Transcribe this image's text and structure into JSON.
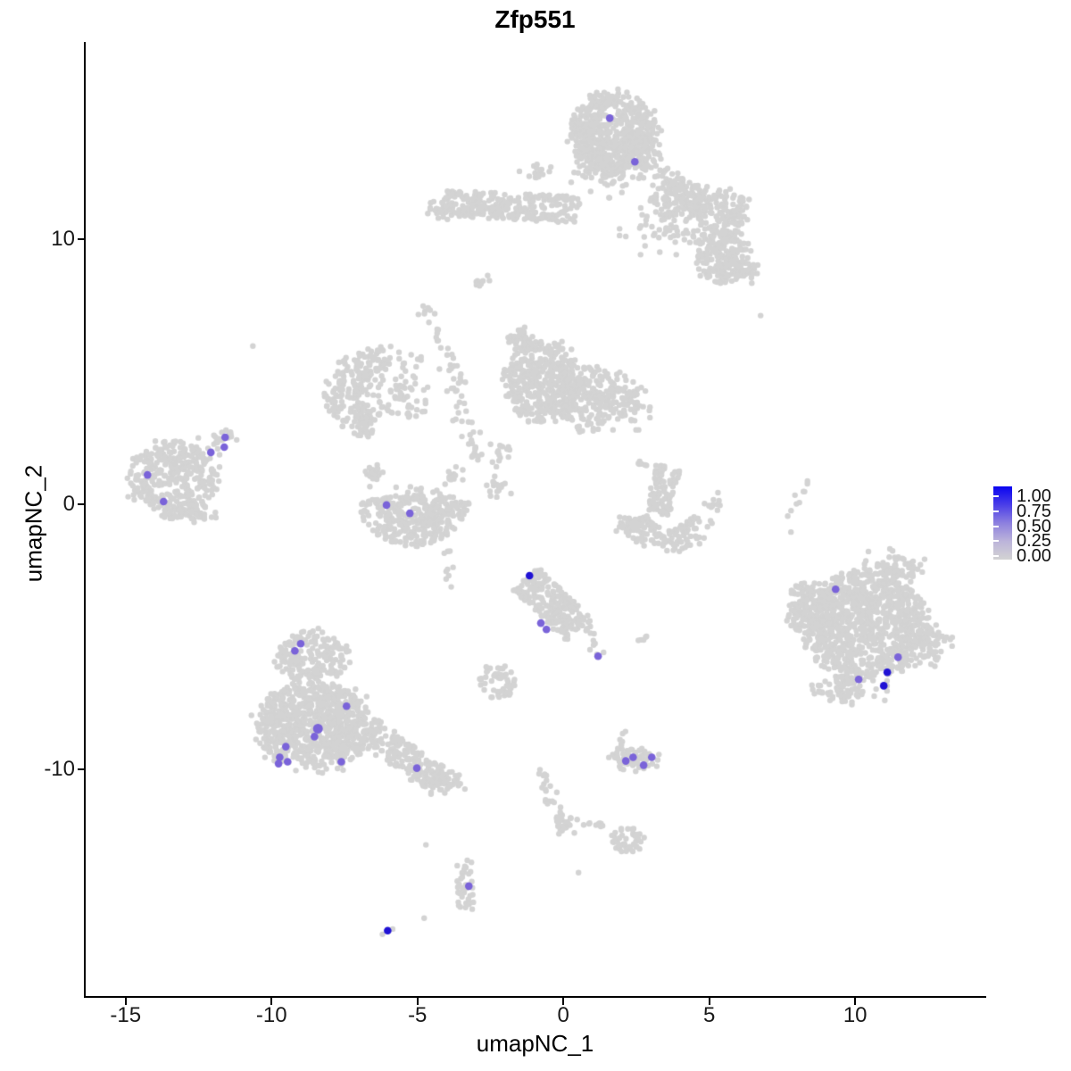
{
  "title": "Zfp551",
  "legend": {
    "labels": [
      "1.00",
      "0.75",
      "0.50",
      "0.25",
      "0.00"
    ],
    "gradient_top_to_bottom": [
      "#0A04F0",
      "#4A3EE8",
      "#8D80DF",
      "#BCB4DA",
      "#D3D3D3"
    ]
  },
  "chart_data": {
    "type": "scatter",
    "title": "Zfp551",
    "xlabel": "umapNC_1",
    "ylabel": "umapNC_2",
    "xlim": [
      -16.4,
      14.46
    ],
    "ylim": [
      -18.65,
      17.47
    ],
    "x_ticks": [
      -15,
      -10,
      -5,
      0,
      5,
      10
    ],
    "y_ticks": [
      10,
      0,
      -10
    ],
    "grid": false,
    "legend_position": "right",
    "colorbar": {
      "min": 0.0,
      "max": 1.0,
      "tick_labels": [
        "1.00",
        "0.75",
        "0.50",
        "0.25",
        "0.00"
      ]
    },
    "point_colors": {
      "zero": "#D3D3D3",
      "mid": "#7A63D9",
      "high": "#2012D4"
    },
    "background_cells": [
      {
        "name": "top-blob",
        "shape": "blob",
        "cx": 1.75,
        "cy": 14.0,
        "rx": 1.45,
        "ry": 1.55,
        "n": 650
      },
      {
        "name": "top-blob-fringe",
        "shape": "gauss",
        "cx": 1.6,
        "cy": 12.55,
        "rx": 1.1,
        "ry": 0.8,
        "n": 60
      },
      {
        "name": "top-trail",
        "shape": "chain",
        "pts": [
          [
            2.6,
            13.3
          ],
          [
            3.4,
            12.5
          ],
          [
            4.3,
            11.5
          ]
        ],
        "j": 0.3,
        "n": 50
      },
      {
        "name": "upper-band",
        "shape": "band",
        "cx": -1.8,
        "cy": 11.25,
        "rx": 2.35,
        "ry": 0.5,
        "rot": -3,
        "n": 270
      },
      {
        "name": "upper-band-tip",
        "shape": "gauss",
        "cx": -4.35,
        "cy": 11.1,
        "rx": 0.45,
        "ry": 0.4,
        "n": 18
      },
      {
        "name": "upper-band-above",
        "shape": "gauss",
        "cx": -0.9,
        "cy": 12.5,
        "rx": 0.5,
        "ry": 0.28,
        "n": 16
      },
      {
        "name": "upper-right-a1",
        "shape": "blob",
        "cx": 4.0,
        "cy": 11.55,
        "rx": 0.95,
        "ry": 0.8,
        "n": 130
      },
      {
        "name": "upper-right-a2",
        "shape": "blob",
        "cx": 5.35,
        "cy": 11.15,
        "rx": 1.0,
        "ry": 0.85,
        "n": 130
      },
      {
        "name": "upper-right-b1",
        "shape": "blob",
        "cx": 5.45,
        "cy": 9.4,
        "rx": 0.95,
        "ry": 1.05,
        "n": 190
      },
      {
        "name": "upper-right-b2",
        "shape": "gauss",
        "cx": 6.2,
        "cy": 8.9,
        "rx": 0.45,
        "ry": 0.45,
        "n": 40
      },
      {
        "name": "upper-right-connect",
        "shape": "gauss",
        "cx": 3.5,
        "cy": 10.4,
        "rx": 1.3,
        "ry": 0.8,
        "n": 55
      },
      {
        "name": "mid-dash",
        "shape": "band",
        "cx": -2.72,
        "cy": 8.45,
        "rx": 0.35,
        "ry": 0.12,
        "rot": 35,
        "n": 12
      },
      {
        "name": "crescent-arc",
        "shape": "arc",
        "cx": -6.05,
        "cy": 4.2,
        "R": 1.5,
        "a0": 85,
        "a1": 255,
        "th": 0.65,
        "ys": 0.85,
        "n": 220
      },
      {
        "name": "crescent-fill",
        "shape": "gauss",
        "cx": -5.8,
        "cy": 4.3,
        "rx": 1.0,
        "ry": 0.7,
        "n": 55
      },
      {
        "name": "crescent-upper-scatter",
        "shape": "gauss",
        "cx": -5.3,
        "cy": 5.4,
        "rx": 0.35,
        "ry": 0.3,
        "n": 10
      },
      {
        "name": "crescent-right-scatter",
        "shape": "gauss",
        "cx": -5.0,
        "cy": 3.6,
        "rx": 0.55,
        "ry": 0.4,
        "n": 14
      },
      {
        "name": "vertical-trail",
        "shape": "chain",
        "pts": [
          [
            -4.75,
            7.4
          ],
          [
            -4.4,
            6.5
          ],
          [
            -3.9,
            5.5
          ],
          [
            -3.55,
            4.6
          ],
          [
            -3.5,
            3.5
          ],
          [
            -3.2,
            2.5
          ],
          [
            -3.05,
            1.8
          ]
        ],
        "j": 0.2,
        "n": 60
      },
      {
        "name": "central-dense",
        "shape": "blob",
        "cx": -0.7,
        "cy": 4.6,
        "rx": 1.3,
        "ry": 1.5,
        "n": 400
      },
      {
        "name": "central-mid",
        "shape": "blob",
        "cx": 0.8,
        "cy": 4.0,
        "rx": 1.0,
        "ry": 1.2,
        "n": 170
      },
      {
        "name": "central-right",
        "shape": "gauss",
        "cx": 2.0,
        "cy": 3.9,
        "rx": 0.8,
        "ry": 0.9,
        "n": 90
      },
      {
        "name": "central-top-tip",
        "shape": "gauss",
        "cx": -1.4,
        "cy": 6.2,
        "rx": 0.45,
        "ry": 0.4,
        "n": 40
      },
      {
        "name": "chain-below-central",
        "shape": "chain",
        "pts": [
          [
            -2.0,
            2.6
          ],
          [
            -2.25,
            1.7
          ],
          [
            -2.3,
            0.8
          ],
          [
            -2.1,
            0.1
          ]
        ],
        "j": 0.17,
        "n": 32
      },
      {
        "name": "dots-left-of-chain",
        "shape": "gauss",
        "cx": -3.05,
        "cy": 1.8,
        "rx": 0.18,
        "ry": 0.28,
        "n": 7
      },
      {
        "name": "bowl-arc",
        "shape": "arc",
        "cx": -5.15,
        "cy": 0.35,
        "R": 1.35,
        "a0": 185,
        "a1": 358,
        "th": 0.6,
        "ys": 1.0,
        "n": 300
      },
      {
        "name": "bowl-left-tip",
        "shape": "gauss",
        "cx": -6.55,
        "cy": 1.15,
        "rx": 0.3,
        "ry": 0.4,
        "n": 25
      },
      {
        "name": "bowl-right-tip",
        "shape": "gauss",
        "cx": -3.75,
        "cy": 1.05,
        "rx": 0.25,
        "ry": 0.3,
        "n": 14
      },
      {
        "name": "bowl-fill",
        "shape": "gauss",
        "cx": -5.2,
        "cy": 0.1,
        "rx": 0.85,
        "ry": 0.5,
        "n": 60
      },
      {
        "name": "below-bowl-chain",
        "shape": "chain",
        "pts": [
          [
            -4.05,
            -1.5
          ],
          [
            -3.95,
            -2.5
          ],
          [
            -3.85,
            -3.4
          ]
        ],
        "j": 0.12,
        "n": 9
      },
      {
        "name": "left-cluster",
        "shape": "blob",
        "cx": -13.35,
        "cy": 1.0,
        "rx": 1.5,
        "ry": 1.4,
        "n": 360
      },
      {
        "name": "left-cluster-tail",
        "shape": "chain",
        "pts": [
          [
            -12.1,
            2.1
          ],
          [
            -11.45,
            2.7
          ]
        ],
        "j": 0.2,
        "n": 22
      },
      {
        "name": "left-cluster-fringe",
        "shape": "gauss",
        "cx": -12.7,
        "cy": -0.35,
        "rx": 0.8,
        "ry": 0.35,
        "n": 40
      },
      {
        "name": "hook-bar",
        "shape": "band",
        "cx": 3.4,
        "cy": 0.5,
        "rx": 0.42,
        "ry": 0.95,
        "rot": -12,
        "n": 100
      },
      {
        "name": "hook-bowl",
        "shape": "arc",
        "cx": 3.6,
        "cy": -0.25,
        "R": 1.25,
        "a0": 195,
        "a1": 345,
        "th": 0.5,
        "ys": 0.9,
        "n": 130
      },
      {
        "name": "hook-left-tip",
        "shape": "gauss",
        "cx": 2.3,
        "cy": -0.65,
        "rx": 0.4,
        "ry": 0.3,
        "n": 25
      },
      {
        "name": "hook-right-tip",
        "shape": "gauss",
        "cx": 5.1,
        "cy": 0.05,
        "rx": 0.22,
        "ry": 0.38,
        "n": 12
      },
      {
        "name": "hook-top-dots",
        "shape": "gauss",
        "cx": 2.7,
        "cy": 1.5,
        "rx": 0.18,
        "ry": 0.18,
        "n": 6
      },
      {
        "name": "dash-i",
        "shape": "chain",
        "pts": [
          [
            8.25,
            0.8
          ],
          [
            7.95,
            0.0
          ],
          [
            7.75,
            -0.6
          ]
        ],
        "j": 0.09,
        "n": 9
      },
      {
        "name": "right-big",
        "shape": "blob",
        "cx": 10.35,
        "cy": -4.55,
        "rx": 2.15,
        "ry": 1.95,
        "n": 950
      },
      {
        "name": "right-big-left-wing",
        "shape": "blob",
        "cx": 8.45,
        "cy": -3.9,
        "rx": 0.85,
        "ry": 1.0,
        "n": 140
      },
      {
        "name": "right-big-top",
        "shape": "gauss",
        "cx": 11.35,
        "cy": -2.35,
        "rx": 0.85,
        "ry": 0.55,
        "n": 70
      },
      {
        "name": "right-big-bottom",
        "shape": "gauss",
        "cx": 9.7,
        "cy": -6.95,
        "rx": 1.15,
        "ry": 0.55,
        "n": 80
      },
      {
        "name": "right-big-right",
        "shape": "gauss",
        "cx": 12.6,
        "cy": -5.2,
        "rx": 0.6,
        "ry": 0.8,
        "n": 60
      },
      {
        "name": "central-bottom",
        "shape": "band",
        "cx": -0.4,
        "cy": -3.75,
        "rx": 1.4,
        "ry": 0.62,
        "rot": -47,
        "n": 230
      },
      {
        "name": "central-bottom-chain",
        "shape": "chain",
        "pts": [
          [
            0.75,
            -4.4
          ],
          [
            1.05,
            -5.1
          ],
          [
            1.2,
            -5.65
          ]
        ],
        "j": 0.11,
        "n": 14
      },
      {
        "name": "pair-dots",
        "shape": "gauss",
        "cx": 2.75,
        "cy": -5.1,
        "rx": 0.28,
        "ry": 0.18,
        "n": 5
      },
      {
        "name": "small-blob-left",
        "shape": "blob",
        "cx": -2.25,
        "cy": -6.7,
        "rx": 0.65,
        "ry": 0.62,
        "n": 55
      },
      {
        "name": "bottomleft-main",
        "shape": "blob",
        "cx": -8.55,
        "cy": -8.35,
        "rx": 1.95,
        "ry": 1.65,
        "n": 800
      },
      {
        "name": "bottomleft-upper",
        "shape": "blob",
        "cx": -8.6,
        "cy": -5.75,
        "rx": 1.25,
        "ry": 0.95,
        "n": 190
      },
      {
        "name": "bottomleft-tail",
        "shape": "band",
        "cx": -5.45,
        "cy": -9.55,
        "rx": 1.6,
        "ry": 0.55,
        "rot": -38,
        "n": 170
      },
      {
        "name": "bottomleft-tail-end",
        "shape": "gauss",
        "cx": -4.1,
        "cy": -10.45,
        "rx": 0.6,
        "ry": 0.4,
        "n": 45
      },
      {
        "name": "bottom-mid-chain",
        "shape": "chain",
        "pts": [
          [
            -0.75,
            -9.95
          ],
          [
            -0.55,
            -10.9
          ],
          [
            -0.25,
            -11.7
          ],
          [
            0.0,
            -12.2
          ]
        ],
        "j": 0.13,
        "n": 32
      },
      {
        "name": "bottom-mid-widen",
        "shape": "gauss",
        "cx": 0.05,
        "cy": -12.15,
        "rx": 0.35,
        "ry": 0.3,
        "n": 18
      },
      {
        "name": "bottom-mid-dashes",
        "shape": "chain",
        "pts": [
          [
            0.55,
            -11.95
          ],
          [
            1.05,
            -12.1
          ],
          [
            1.55,
            -12.15
          ]
        ],
        "j": 0.08,
        "n": 9
      },
      {
        "name": "bottom-small-blob",
        "shape": "blob",
        "cx": 2.2,
        "cy": -12.7,
        "rx": 0.55,
        "ry": 0.5,
        "n": 42
      },
      {
        "name": "purple-small-cluster",
        "shape": "blob",
        "cx": 2.45,
        "cy": -9.62,
        "rx": 0.85,
        "ry": 0.45,
        "n": 60
      },
      {
        "name": "purple-small-nub",
        "shape": "gauss",
        "cx": 2.0,
        "cy": -8.95,
        "rx": 0.18,
        "ry": 0.3,
        "n": 7
      },
      {
        "name": "comma-blob",
        "shape": "chain",
        "pts": [
          [
            -3.3,
            -13.55
          ],
          [
            -3.55,
            -14.2
          ],
          [
            -3.3,
            -14.8
          ],
          [
            -3.5,
            -15.35
          ]
        ],
        "j": 0.16,
        "n": 38
      }
    ],
    "background_singles": [
      [
        -10.64,
        5.98
      ],
      [
        6.76,
        7.13
      ],
      [
        7.8,
        -1.05
      ],
      [
        -4.77,
        -15.64
      ],
      [
        -4.71,
        -12.87
      ],
      [
        0.52,
        -13.92
      ],
      [
        -6.2,
        -16.25
      ],
      [
        -5.85,
        -16.05
      ]
    ],
    "expressing_cells": [
      {
        "x": 1.59,
        "y": 14.59,
        "level": "mid"
      },
      {
        "x": 2.45,
        "y": 12.94,
        "level": "mid"
      },
      {
        "x": -11.59,
        "y": 2.53,
        "level": "mid"
      },
      {
        "x": -11.62,
        "y": 2.16,
        "level": "mid"
      },
      {
        "x": -12.08,
        "y": 1.96,
        "level": "mid"
      },
      {
        "x": -14.25,
        "y": 1.11,
        "level": "mid"
      },
      {
        "x": -13.7,
        "y": 0.1,
        "level": "mid"
      },
      {
        "x": -6.06,
        "y": -0.03,
        "level": "mid"
      },
      {
        "x": -5.26,
        "y": -0.34,
        "level": "mid"
      },
      {
        "x": 9.33,
        "y": -3.21,
        "level": "mid"
      },
      {
        "x": 11.47,
        "y": -5.78,
        "level": "mid"
      },
      {
        "x": 11.1,
        "y": -6.35,
        "level": "high"
      },
      {
        "x": 10.98,
        "y": -6.86,
        "level": "high"
      },
      {
        "x": 10.12,
        "y": -6.62,
        "level": "mid"
      },
      {
        "x": -1.16,
        "y": -2.7,
        "level": "high"
      },
      {
        "x": -0.77,
        "y": -4.49,
        "level": "mid"
      },
      {
        "x": -0.58,
        "y": -4.73,
        "level": "mid"
      },
      {
        "x": 1.19,
        "y": -5.74,
        "level": "mid"
      },
      {
        "x": 2.14,
        "y": -9.7,
        "level": "mid"
      },
      {
        "x": 2.39,
        "y": -9.56,
        "level": "mid"
      },
      {
        "x": 2.75,
        "y": -9.86,
        "level": "mid"
      },
      {
        "x": 3.03,
        "y": -9.56,
        "level": "mid"
      },
      {
        "x": -9.0,
        "y": -5.27,
        "level": "mid"
      },
      {
        "x": -9.2,
        "y": -5.54,
        "level": "mid"
      },
      {
        "x": -7.43,
        "y": -7.63,
        "level": "mid"
      },
      {
        "x": -8.41,
        "y": -8.48,
        "level": "mid",
        "r": 5.5
      },
      {
        "x": -8.53,
        "y": -8.78,
        "level": "mid"
      },
      {
        "x": -9.51,
        "y": -9.16,
        "level": "mid"
      },
      {
        "x": -9.72,
        "y": -9.56,
        "level": "mid"
      },
      {
        "x": -9.76,
        "y": -9.8,
        "level": "mid"
      },
      {
        "x": -9.45,
        "y": -9.73,
        "level": "mid"
      },
      {
        "x": -7.61,
        "y": -9.73,
        "level": "mid"
      },
      {
        "x": -5.02,
        "y": -9.97,
        "level": "mid"
      },
      {
        "x": -3.24,
        "y": -14.43,
        "level": "mid"
      },
      {
        "x": -6.02,
        "y": -16.11,
        "level": "high"
      }
    ]
  }
}
